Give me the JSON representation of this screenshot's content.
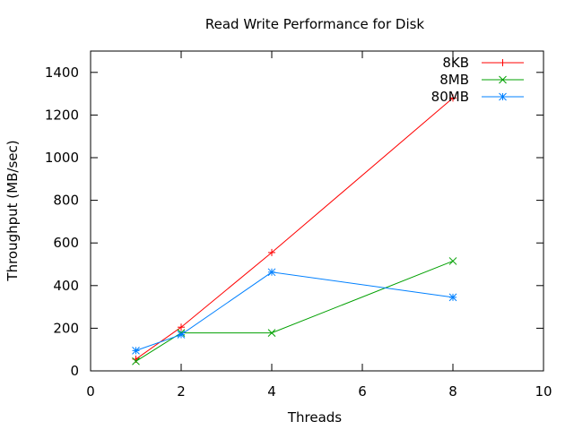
{
  "chart_data": {
    "type": "line",
    "title": "Read Write Performance for Disk",
    "xlabel": "Threads",
    "ylabel": "Throughput (MB/sec)",
    "xlim": [
      0,
      10
    ],
    "ylim": [
      0,
      1500
    ],
    "x_ticks": [
      "0",
      "2",
      "4",
      "6",
      "8",
      "10"
    ],
    "y_ticks": [
      "0",
      "200",
      "400",
      "600",
      "800",
      "1000",
      "1200",
      "1400"
    ],
    "x_tick_values": [
      0,
      2,
      4,
      6,
      8,
      10
    ],
    "y_tick_values": [
      0,
      200,
      400,
      600,
      800,
      1000,
      1200,
      1400
    ],
    "grid": false,
    "legend_position": "top-right",
    "series": [
      {
        "name": "8KB",
        "color": "#ff0000",
        "marker": "plus",
        "x": [
          1,
          2,
          4,
          8
        ],
        "y": [
          55,
          205,
          555,
          1280
        ]
      },
      {
        "name": "8MB",
        "color": "#00a000",
        "marker": "cross",
        "x": [
          1,
          2,
          4,
          8
        ],
        "y": [
          45,
          178,
          178,
          515
        ]
      },
      {
        "name": "80MB",
        "color": "#0080ff",
        "marker": "star",
        "x": [
          1,
          2,
          4,
          8
        ],
        "y": [
          95,
          170,
          463,
          345
        ]
      }
    ]
  }
}
